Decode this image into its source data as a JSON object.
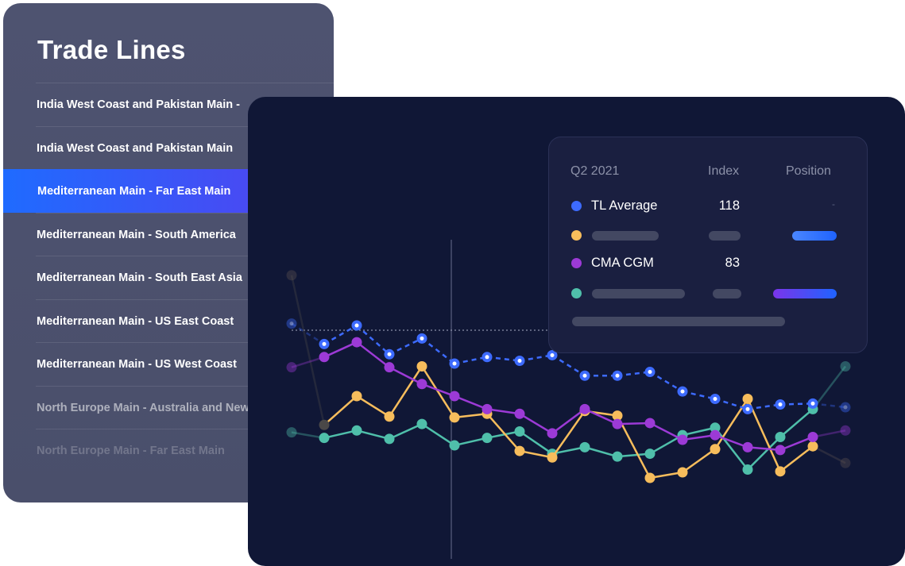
{
  "sidebar": {
    "title": "Trade Lines",
    "items": [
      {
        "label": "India West Coast and Pakistan Main -"
      },
      {
        "label": "India West Coast and Pakistan Main"
      },
      {
        "label": "Mediterranean Main - Far East Main",
        "selected": true
      },
      {
        "label": "Mediterranean Main - South America"
      },
      {
        "label": "Mediterranean Main - South East Asia"
      },
      {
        "label": "Mediterranean Main - US East Coast"
      },
      {
        "label": "Mediterranean Main - US West Coast"
      },
      {
        "label": "North Europe Main - Australia and New"
      },
      {
        "label": "North Europe Main - Far East Main"
      }
    ],
    "selected_color_start": "#1f6bff",
    "selected_color_end": "#5a44ee"
  },
  "tooltip": {
    "period": "Q2 2021",
    "col_index": "Index",
    "col_position": "Position",
    "rows": [
      {
        "name": "TL Average",
        "index": "118",
        "position": "-",
        "color": "#3d6bff"
      },
      {
        "name": "",
        "index": "",
        "color": "#f7bd5c",
        "position_bar": "blue"
      },
      {
        "name": "CMA CGM",
        "index": "83",
        "color": "#9c3ad6"
      },
      {
        "name": "",
        "index": "",
        "color": "#4fbfaa",
        "position_bar": "purple-blue"
      }
    ]
  },
  "chart_data": {
    "type": "line",
    "title": "",
    "xlabel": "",
    "ylabel": "",
    "grid": false,
    "highlighted_point_index": 5,
    "reference_line": "dotted horizontal",
    "series": [
      {
        "color": "#3d6bff",
        "style": "dashed",
        "values": [
          161,
          139,
          159,
          128,
          145,
          118,
          125,
          121,
          127,
          105,
          105,
          109,
          88,
          80,
          69,
          74,
          75,
          71
        ]
      },
      {
        "color": "#9c3ad6",
        "style": "solid",
        "values": [
          114,
          125,
          141,
          114,
          96,
          83,
          69,
          64,
          43,
          69,
          53,
          54,
          36,
          41,
          28,
          25,
          39,
          46
        ]
      },
      {
        "color": "#f7bd5c",
        "style": "solid",
        "values": [
          213,
          52,
          83,
          61,
          115,
          60,
          64,
          24,
          17,
          67,
          62,
          -5,
          1,
          26,
          80,
          2,
          29,
          11
        ]
      },
      {
        "color": "#4fbfaa",
        "style": "solid",
        "values": [
          44,
          38,
          46,
          37,
          53,
          30,
          38,
          45,
          21,
          28,
          18,
          21,
          41,
          49,
          4,
          39,
          69,
          115
        ]
      }
    ]
  }
}
